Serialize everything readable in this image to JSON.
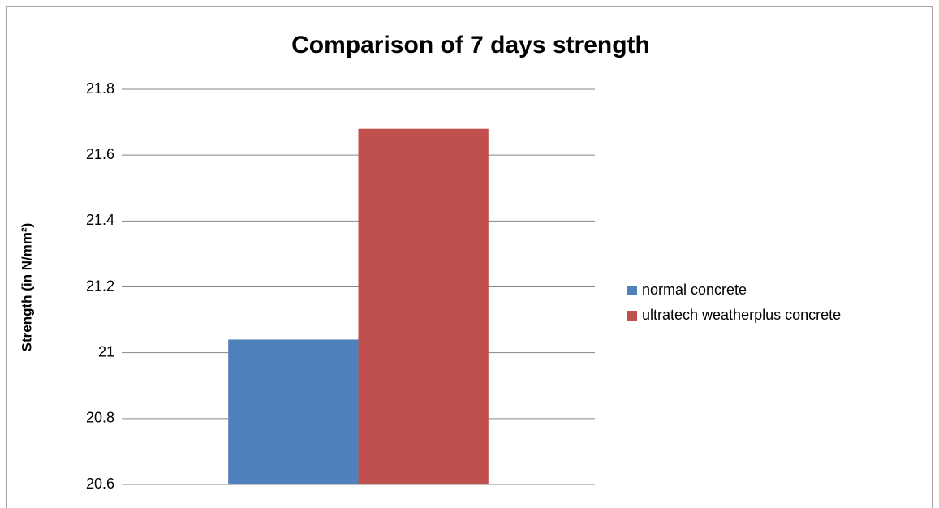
{
  "chart_data": {
    "type": "bar",
    "title": "Comparison of 7 days strength",
    "y_label": "Strength (in N/mm²)",
    "categories": [
      null
    ],
    "series": [
      {
        "name": "normal concrete",
        "color": "#4f81bd",
        "values": [
          21.04
        ]
      },
      {
        "name": "ultratech weatherplus concrete",
        "color": "#c0504d",
        "values": [
          21.68
        ]
      }
    ],
    "ylim": [
      20.6,
      21.8
    ],
    "yticks": [
      20.6,
      20.8,
      21,
      21.2,
      21.4,
      21.6,
      21.8
    ],
    "grid": true,
    "legend": "right"
  }
}
